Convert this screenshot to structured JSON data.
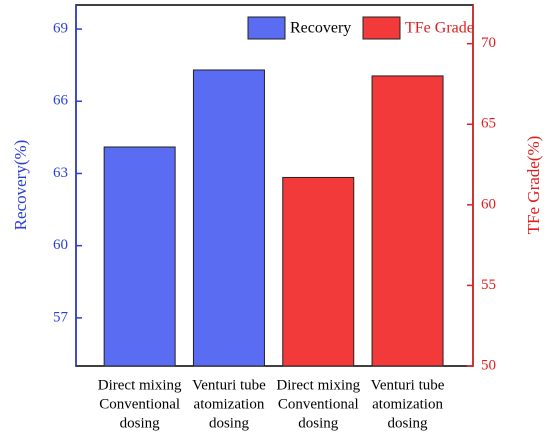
{
  "chart_data": {
    "type": "bar",
    "categories": [
      [
        "Direct mixing",
        "Conventional",
        "dosing"
      ],
      [
        "Venturi tube",
        "atomization",
        "dosing"
      ],
      [
        "Direct mixing",
        "Conventional",
        "dosing"
      ],
      [
        "Venturi tube",
        "atomization",
        "dosing"
      ]
    ],
    "series": [
      {
        "name": "Recovery",
        "color": "#5a6cf2",
        "values": [
          64.1,
          67.3,
          null,
          null
        ]
      },
      {
        "name": "TFe Grade",
        "color": "#f23a3a",
        "values": [
          null,
          null,
          61.7,
          68.0
        ],
        "axis": "y2"
      }
    ],
    "ylabel": "Recovery(%)",
    "y2label": "TFe Grade(%)",
    "ylim": [
      55,
      70
    ],
    "yticks": [
      57,
      60,
      63,
      66,
      69
    ],
    "y2lim": [
      50,
      72.4
    ],
    "y2ticks": [
      50,
      55,
      60,
      65,
      70
    ],
    "legend": "upper right"
  }
}
